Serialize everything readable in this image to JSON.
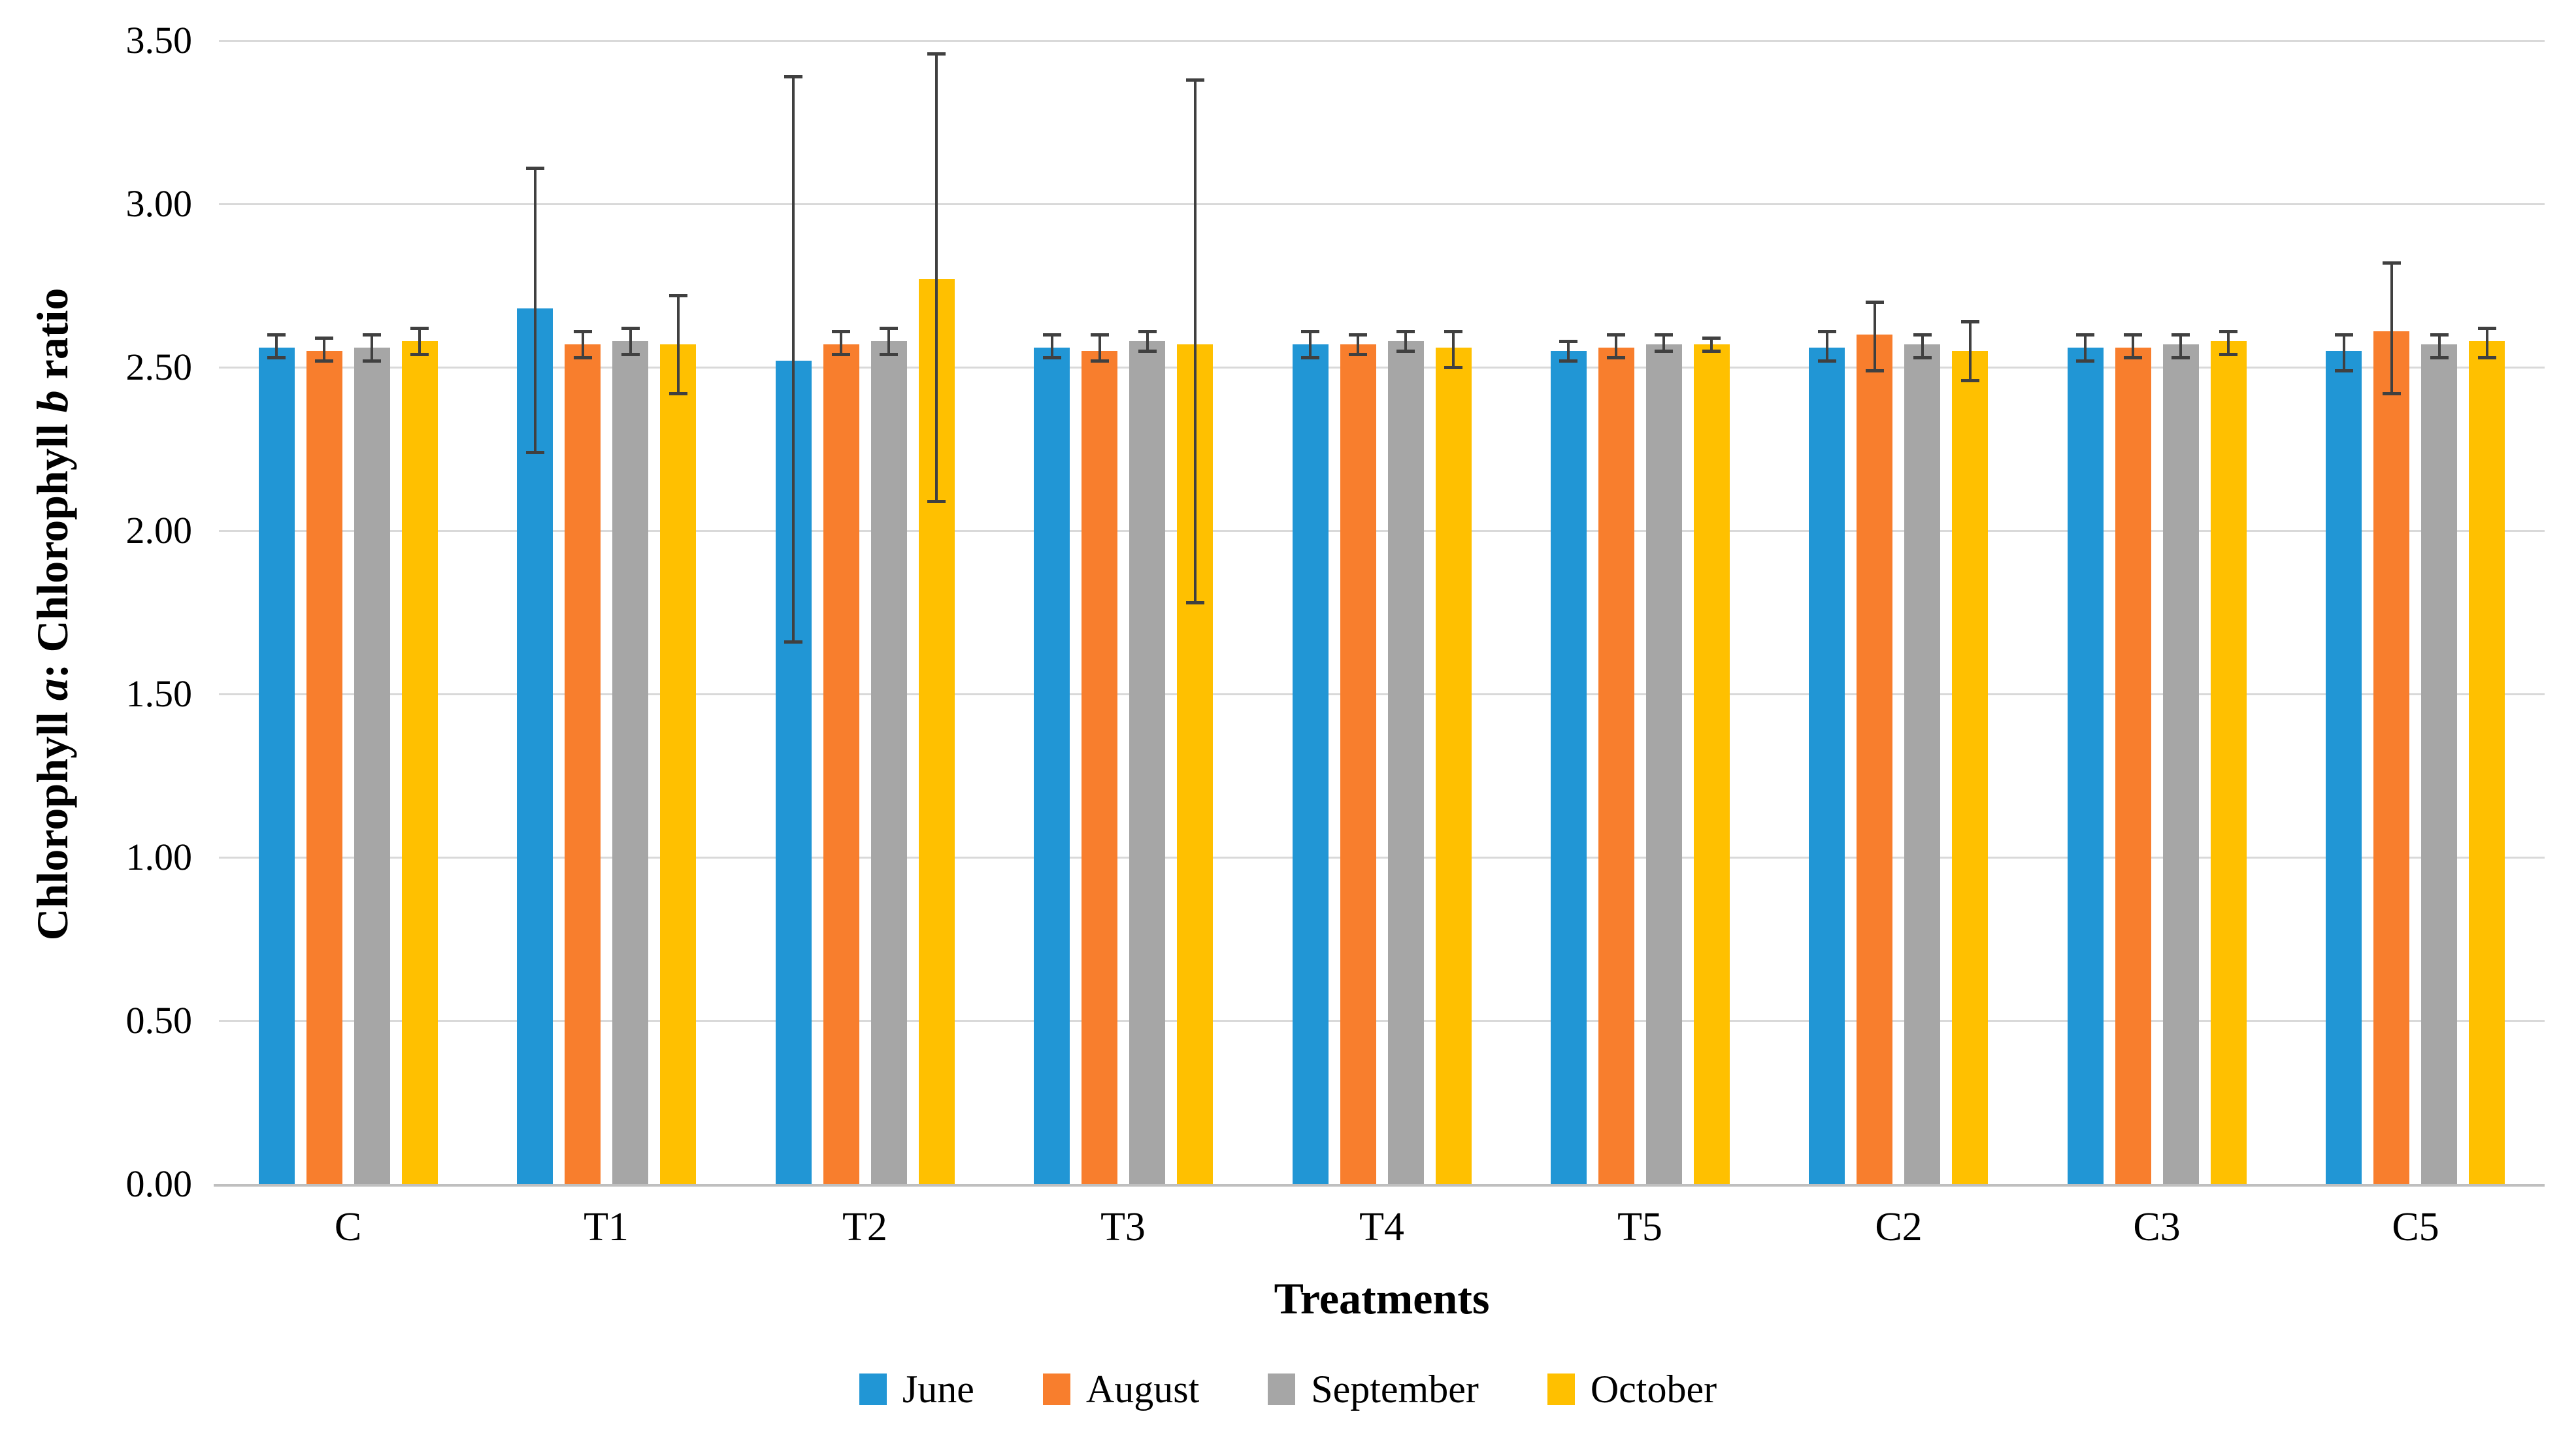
{
  "chart_data": {
    "type": "bar",
    "title": "",
    "xlabel": "Treatments",
    "ylabel": "Chlorophyll a: Chlorophyll b ratio",
    "ylabel_segments": [
      {
        "text": "Chlorophyll ",
        "italic": false
      },
      {
        "text": "a",
        "italic": true
      },
      {
        "text": ": Chlorophyll ",
        "italic": false
      },
      {
        "text": "b",
        "italic": true
      },
      {
        "text": " ratio",
        "italic": false
      }
    ],
    "categories": [
      "C",
      "T1",
      "T2",
      "T3",
      "T4",
      "T5",
      "C2",
      "C3",
      "C5"
    ],
    "ylim": [
      0,
      3.5
    ],
    "ytick_step": 0.5,
    "ytick_labels": [
      "0.00",
      "0.50",
      "1.00",
      "1.50",
      "2.00",
      "2.50",
      "3.00",
      "3.50"
    ],
    "grid": true,
    "legend_position": "bottom",
    "error_bars": true,
    "series": [
      {
        "name": "June",
        "color": "#2196D5",
        "values": [
          2.56,
          2.68,
          2.52,
          2.56,
          2.57,
          2.55,
          2.56,
          2.56,
          2.55
        ],
        "err_lo": [
          2.53,
          2.24,
          1.66,
          2.53,
          2.53,
          2.52,
          2.52,
          2.52,
          2.49
        ],
        "err_hi": [
          2.6,
          3.11,
          3.39,
          2.6,
          2.61,
          2.58,
          2.61,
          2.6,
          2.6
        ]
      },
      {
        "name": "August",
        "color": "#F87E2D",
        "values": [
          2.55,
          2.57,
          2.57,
          2.55,
          2.57,
          2.56,
          2.6,
          2.56,
          2.61
        ],
        "err_lo": [
          2.52,
          2.53,
          2.54,
          2.52,
          2.54,
          2.53,
          2.49,
          2.53,
          2.42
        ],
        "err_hi": [
          2.59,
          2.61,
          2.61,
          2.6,
          2.6,
          2.6,
          2.7,
          2.6,
          2.82
        ]
      },
      {
        "name": "September",
        "color": "#A6A6A6",
        "values": [
          2.56,
          2.58,
          2.58,
          2.58,
          2.58,
          2.57,
          2.57,
          2.57,
          2.57
        ],
        "err_lo": [
          2.52,
          2.54,
          2.54,
          2.55,
          2.55,
          2.55,
          2.53,
          2.53,
          2.53
        ],
        "err_hi": [
          2.6,
          2.62,
          2.62,
          2.61,
          2.61,
          2.6,
          2.6,
          2.6,
          2.6
        ]
      },
      {
        "name": "October",
        "color": "#FFC000",
        "values": [
          2.58,
          2.57,
          2.77,
          2.57,
          2.56,
          2.57,
          2.55,
          2.58,
          2.58
        ],
        "err_lo": [
          2.54,
          2.42,
          2.09,
          1.78,
          2.5,
          2.55,
          2.46,
          2.54,
          2.53
        ],
        "err_hi": [
          2.62,
          2.72,
          3.46,
          3.38,
          2.61,
          2.59,
          2.64,
          2.61,
          2.62
        ]
      }
    ],
    "colors": {
      "gridline": "#D9D9D9",
      "axis_line": "#BFBFBF",
      "error_bar": "#404040",
      "text": "#000000",
      "background": "#FFFFFF"
    }
  }
}
